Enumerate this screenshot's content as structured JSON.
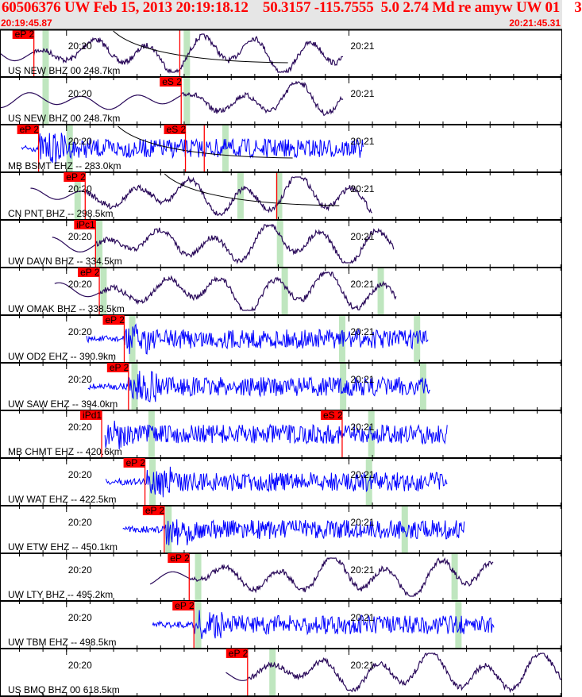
{
  "header": {
    "title": "60506376 UW Feb 15, 2013 20:19:18.12    50.3157 -115.7555  5.0 2.74 Md re amyw UW 01    3",
    "window_start": "20:19:45.87",
    "window_end": "20:21:45.31"
  },
  "colors": {
    "broadband": "#2a0a5a",
    "short_period": "#0000ff",
    "pick": "#ff0000",
    "window": "#bfe6bf",
    "header_bg": "#e6e6e6"
  },
  "chart_data": {
    "type": "line",
    "title": "",
    "xlabel": "",
    "ylabel": "",
    "x_range_seconds": [
      0,
      119.44
    ],
    "time_tick_labels": [
      {
        "label": "20:20",
        "t": 14.13
      },
      {
        "label": "20:21",
        "t": 74.13
      }
    ],
    "traces": [
      {
        "label": "US NEW BHZ 00 248.7km",
        "kind": "broadband",
        "t_start": 0,
        "t_end": 73,
        "picks": [
          {
            "label": "eP 2",
            "t": 7.2
          },
          {
            "label": "",
            "t": 38.2
          }
        ],
        "windows": [
          9.7,
          39.7
        ],
        "travel_curve": true
      },
      {
        "label": "US NEW BHZ 00 248.7km",
        "kind": "broadband",
        "t_start": 0,
        "t_end": 73,
        "picks": [
          {
            "label": "eS 2",
            "t": 38.5
          }
        ],
        "windows": [
          9.7,
          39.7
        ],
        "travel_curve": false
      },
      {
        "label": "MB BSMT EHZ -- 283.0km",
        "kind": "short_period",
        "t_start": 4.6,
        "t_end": 77.2,
        "picks": [
          {
            "label": "eP 2",
            "t": 8.2
          },
          {
            "label": "eS 2",
            "t": 39.4
          },
          {
            "label": "",
            "t": 43.4
          }
        ],
        "windows": [
          14.8,
          47.9
        ],
        "travel_curve": true
      },
      {
        "label": "CN PNT BHZ -- 298.5km",
        "kind": "broadband",
        "t_start": 6.5,
        "t_end": 79.2,
        "picks": [
          {
            "label": "eP 2",
            "t": 18.1
          },
          {
            "label": "",
            "t": 58.8
          }
        ],
        "windows": [
          16.5,
          51.1,
          59.3
        ],
        "travel_curve": true
      },
      {
        "label": "UW DAVN BHZ -- 334.5km",
        "kind": "broadband",
        "t_start": 11.1,
        "t_end": 83.8,
        "picks": [
          {
            "label": "iPc1",
            "t": 20.3
          }
        ],
        "windows": [
          21.1,
          59.5
        ],
        "travel_curve": false
      },
      {
        "label": "UW OMAK BHZ -- 338.5km",
        "kind": "broadband",
        "t_start": 11.6,
        "t_end": 84.3,
        "picks": [
          {
            "label": "eP 2",
            "t": 21.1
          }
        ],
        "windows": [
          22.0,
          60.5,
          80.9
        ],
        "travel_curve": false
      },
      {
        "label": "UW OD2 EHZ -- 390.9km",
        "kind": "short_period",
        "t_start": 18.4,
        "t_end": 91.1,
        "picks": [
          {
            "label": "eP 2",
            "t": 26.4
          }
        ],
        "windows": [
          28.1,
          72.7,
          88.6
        ],
        "travel_curve": false
      },
      {
        "label": "UW SAW EHZ -- 394.0km",
        "kind": "short_period",
        "t_start": 18.7,
        "t_end": 91.5,
        "picks": [
          {
            "label": "eP 2",
            "t": 27.3
          }
        ],
        "windows": [
          28.6,
          72.9,
          89.9
        ],
        "travel_curve": false
      },
      {
        "label": "MB CHMT EHZ -- 420.6km",
        "kind": "short_period",
        "t_start": 22.3,
        "t_end": 95.1,
        "picks": [
          {
            "label": "iPd1",
            "t": 21.6
          },
          {
            "label": "eS 2",
            "t": 72.7
          }
        ],
        "windows": [
          32.2,
          78.9
        ],
        "travel_curve": false
      },
      {
        "label": "UW WAT EHZ -- 422.5km",
        "kind": "short_period",
        "t_start": 22.5,
        "t_end": 95.1,
        "picks": [
          {
            "label": "eP 2",
            "t": 30.8
          }
        ],
        "windows": [
          32.4,
          78.4
        ],
        "travel_curve": false
      },
      {
        "label": "UW ETW EHZ -- 450.1km",
        "kind": "short_period",
        "t_start": 26.1,
        "t_end": 98.8,
        "picks": [
          {
            "label": "eP 2",
            "t": 34.9
          }
        ],
        "windows": [
          35.8,
          86.0
        ],
        "travel_curve": false
      },
      {
        "label": "UW LTY BHZ -- 495.2km",
        "kind": "broadband",
        "t_start": 31.9,
        "t_end": 104.8,
        "picks": [
          {
            "label": "eP 2",
            "t": 40.2
          }
        ],
        "windows": [
          42.1,
          96.6
        ],
        "travel_curve": false
      },
      {
        "label": "UW TBM EHZ -- 498.5km",
        "kind": "short_period",
        "t_start": 32.4,
        "t_end": 105.1,
        "picks": [
          {
            "label": "eP 2",
            "t": 41.2
          }
        ],
        "windows": [
          42.1,
          97.4
        ],
        "travel_curve": false
      },
      {
        "label": "US BMQ BHZ 00 618.5km",
        "kind": "broadband",
        "t_start": 48.0,
        "t_end": 119.44,
        "picks": [
          {
            "label": "eP 2",
            "t": 52.6
          }
        ],
        "windows": [
          57.9
        ],
        "travel_curve": false
      }
    ]
  }
}
